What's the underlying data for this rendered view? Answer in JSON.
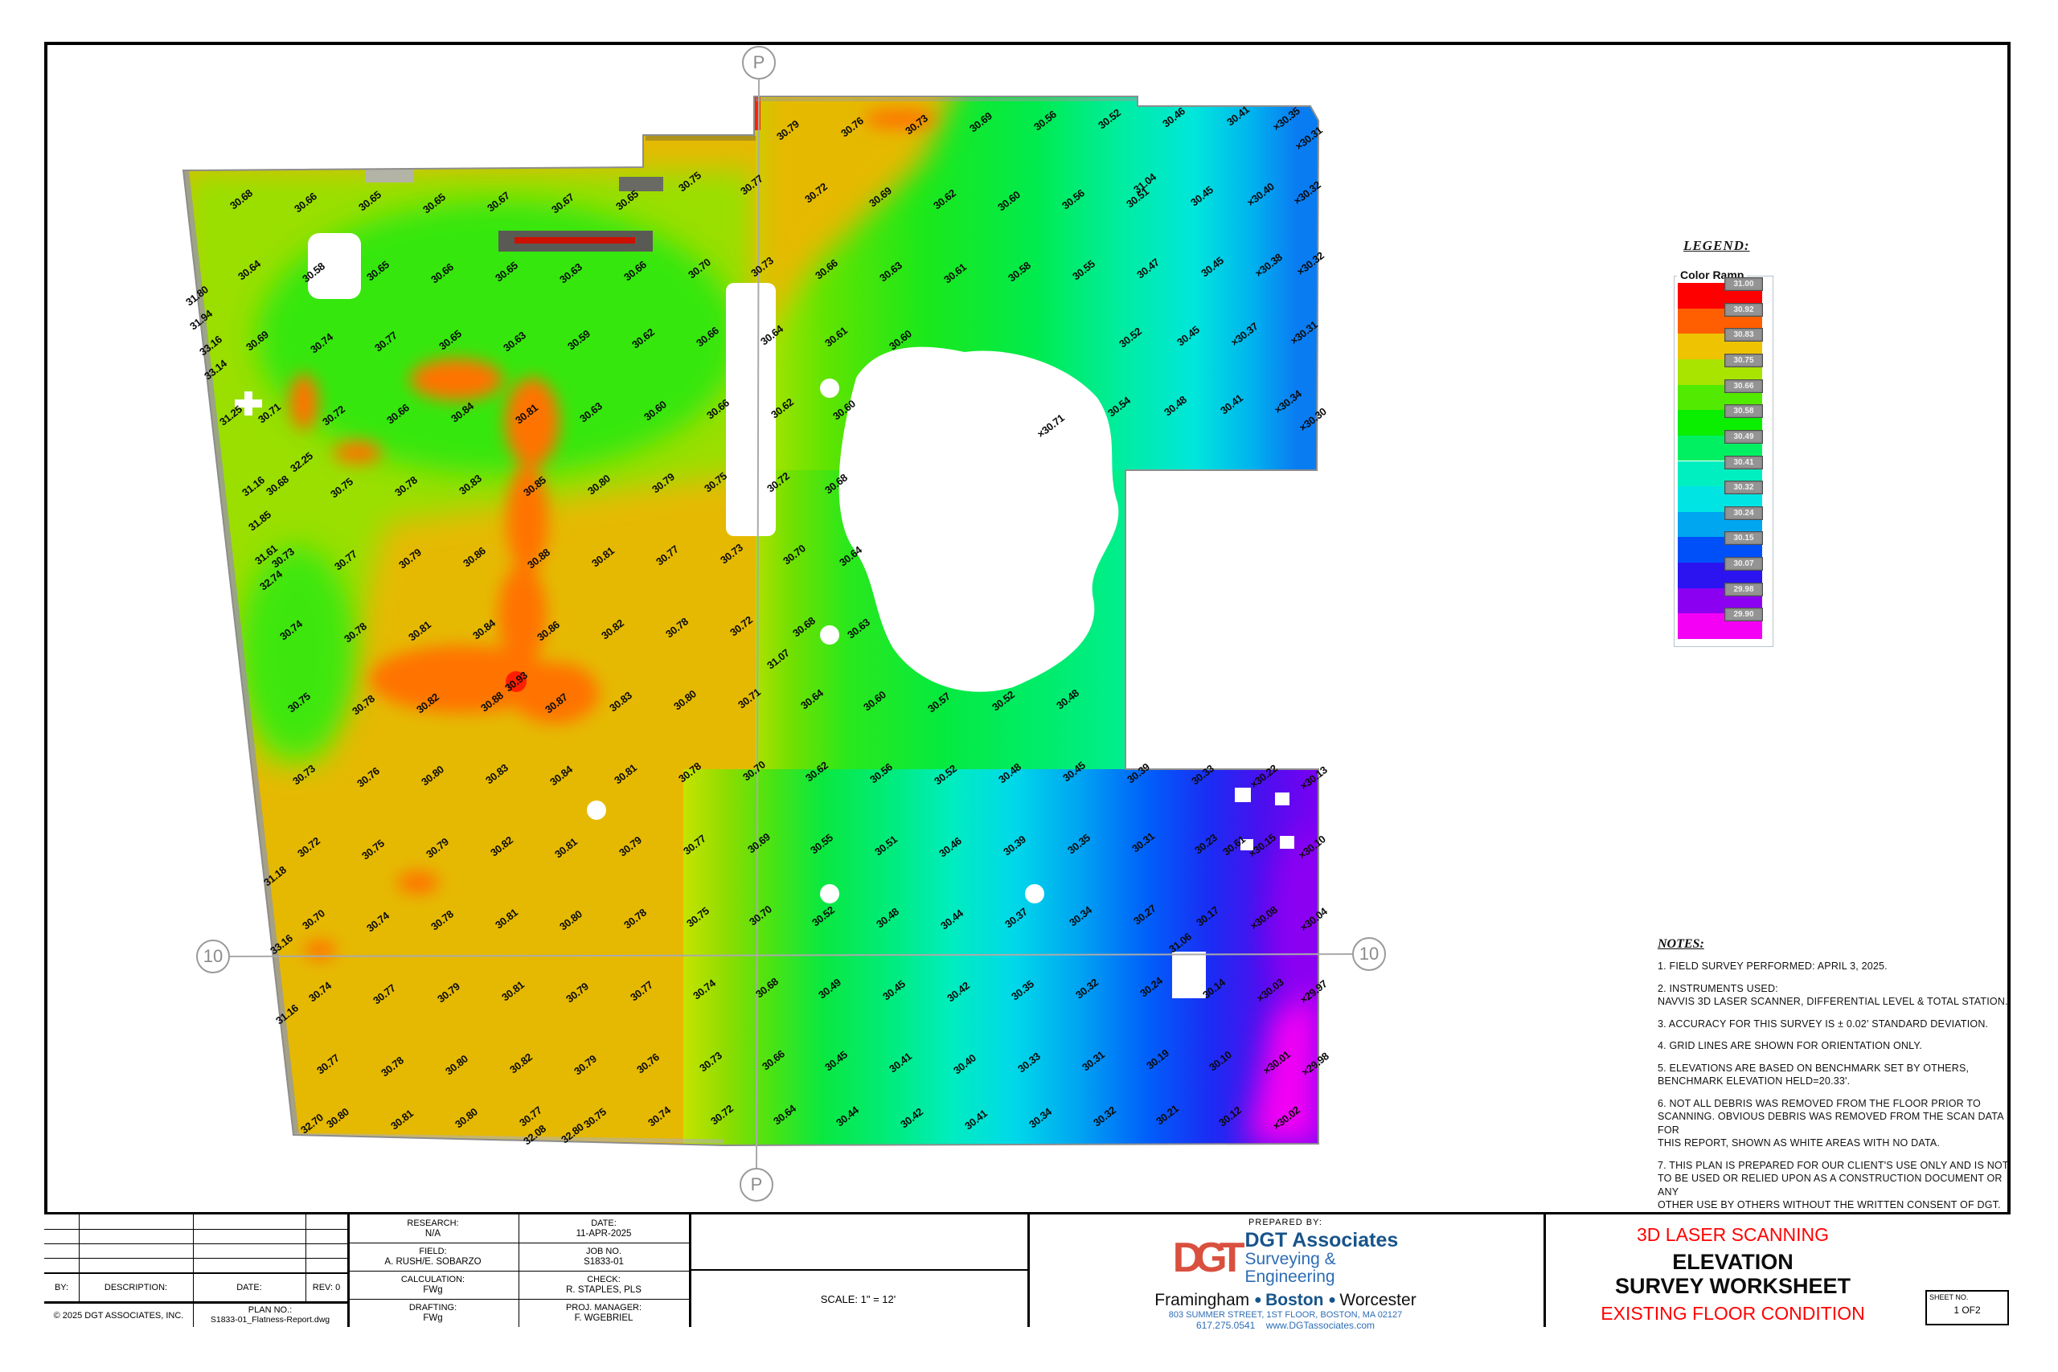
{
  "legend": {
    "title": "LEGEND:",
    "box_title": "Color Ramp",
    "entries": [
      {
        "label": "31.00",
        "color": "#ff0000"
      },
      {
        "label": "30.92",
        "color": "#ff5f00"
      },
      {
        "label": "30.83",
        "color": "#eec301"
      },
      {
        "label": "30.75",
        "color": "#a8e400"
      },
      {
        "label": "30.66",
        "color": "#52ea00"
      },
      {
        "label": "30.58",
        "color": "#0aee00"
      },
      {
        "label": "30.49",
        "color": "#00f062"
      },
      {
        "label": "30.41",
        "color": "#00efc0"
      },
      {
        "label": "30.32",
        "color": "#00e4e4"
      },
      {
        "label": "30.24",
        "color": "#00a6f0"
      },
      {
        "label": "30.15",
        "color": "#0050fa"
      },
      {
        "label": "30.07",
        "color": "#2b14f0"
      },
      {
        "label": "29.98",
        "color": "#8c00f2"
      },
      {
        "label": "29.90",
        "color": "#f400f4"
      }
    ]
  },
  "notes": {
    "title": "NOTES:",
    "items": [
      "1. FIELD SURVEY PERFORMED: APRIL 3, 2025.",
      "2. INSTRUMENTS USED:\nNAVVIS 3D LASER SCANNER, DIFFERENTIAL LEVEL & TOTAL STATION.",
      "3. ACCURACY FOR THIS SURVEY IS ± 0.02' STANDARD DEVIATION.",
      "4. GRID LINES ARE SHOWN FOR ORIENTATION ONLY.",
      "5. ELEVATIONS ARE BASED ON BENCHMARK SET BY OTHERS,\nBENCHMARK ELEVATION HELD=20.33'.",
      "6. NOT ALL DEBRIS WAS REMOVED FROM THE FLOOR PRIOR TO\nSCANNING. OBVIOUS DEBRIS WAS REMOVED FROM THE SCAN DATA FOR\nTHIS REPORT, SHOWN AS WHITE AREAS WITH NO DATA.",
      "7. THIS PLAN IS PREPARED FOR OUR CLIENT'S USE ONLY AND IS NOT\nTO BE USED OR RELIED UPON AS A CONSTRUCTION DOCUMENT OR ANY\nOTHER USE BY OTHERS WITHOUT THE WRITTEN CONSENT OF DGT."
    ]
  },
  "grid_markers": {
    "top": "P",
    "bottom": "P",
    "left": "10",
    "right": "10"
  },
  "title_block": {
    "rev_by": "BY:",
    "rev_description": "DESCRIPTION:",
    "rev_date": "DATE:",
    "rev_rev": "REV: 0",
    "copyright": "© 2025  DGT  ASSOCIATES,  INC.",
    "plan_no_label": "PLAN  NO.:",
    "plan_no": "S1833-01_Flatness-Report.dwg",
    "research_label": "RESEARCH:",
    "research": "N/A",
    "date_label": "DATE:",
    "date": "11-APR-2025",
    "field_label": "FIELD:",
    "field": "A.  RUSH/E.  SOBARZO",
    "job_label": "JOB  NO.",
    "job": "S1833-01",
    "calc_label": "CALCULATION:",
    "calc": "FWg",
    "check_label": "CHECK:",
    "check": "R.  STAPLES,  PLS",
    "drafting_label": "DRAFTING:",
    "drafting": "FWg",
    "pm_label": "PROJ.  MANAGER:",
    "pm": "F.  WGEBRIEL",
    "scale": "SCALE: 1\" = 12'",
    "prepared_by": "PREPARED  BY:",
    "logo_text": "DGT",
    "company": "DGT Associates",
    "tagline1": "Surveying &",
    "tagline2": "Engineering",
    "city1": "Framingham",
    "city2": "Boston",
    "city3": "Worcester",
    "address": "803 SUMMER STREET, 1ST FLOOR, BOSTON, MA 02127",
    "phone": "617.275.0541",
    "website": "www.DGTassociates.com",
    "title_red1": "3D LASER SCANNING",
    "title_main1": "ELEVATION",
    "title_main2": "SURVEY WORKSHEET",
    "title_red2": "EXISTING FLOOR CONDITION",
    "sheet_label": "SHEET  NO.",
    "sheet_no": "1 OF2",
    "brand_red": "#D9503F",
    "brand_navy": "#17548A",
    "brand_blue": "#2D6DB5",
    "title_red": "#FF0000"
  },
  "chart_data": {
    "type": "heatmap",
    "title": "Existing floor condition elevation survey (color ramp of floor elevations)",
    "units": "feet",
    "value_range": [
      29.9,
      31.0
    ],
    "legend_position": "right",
    "ramp_values": [
      31.0,
      30.92,
      30.83,
      30.75,
      30.66,
      30.58,
      30.49,
      30.41,
      30.32,
      30.24,
      30.15,
      30.07,
      29.98,
      29.9
    ],
    "ramp_colors": [
      "#ff0000",
      "#ff5f00",
      "#eec301",
      "#a8e400",
      "#52ea00",
      "#0aee00",
      "#00f062",
      "#00efc0",
      "#00e4e4",
      "#00a6f0",
      "#0050fa",
      "#2b14f0",
      "#8c00f2",
      "#f400f4"
    ],
    "points": [
      [
        980,
        162,
        "30.79"
      ],
      [
        1060,
        158,
        "30.76"
      ],
      [
        1140,
        155,
        "30.73"
      ],
      [
        1220,
        152,
        "30.69"
      ],
      [
        1300,
        150,
        "30.56"
      ],
      [
        1380,
        148,
        "30.52"
      ],
      [
        1460,
        146,
        "30.46"
      ],
      [
        1540,
        144,
        "30.41"
      ],
      [
        1600,
        148,
        "×30.35"
      ],
      [
        1628,
        172,
        "×30.31"
      ],
      [
        300,
        248,
        "30.68"
      ],
      [
        380,
        252,
        "30.66"
      ],
      [
        460,
        250,
        "30.65"
      ],
      [
        540,
        253,
        "30.65"
      ],
      [
        620,
        251,
        "30.67"
      ],
      [
        700,
        253,
        "30.67"
      ],
      [
        780,
        249,
        "30.65"
      ],
      [
        858,
        226,
        "30.75"
      ],
      [
        935,
        230,
        "30.77"
      ],
      [
        1015,
        240,
        "30.72"
      ],
      [
        1095,
        245,
        "30.69"
      ],
      [
        1175,
        248,
        "30.62"
      ],
      [
        1255,
        250,
        "30.60"
      ],
      [
        1335,
        248,
        "30.56"
      ],
      [
        1415,
        246,
        "30.51"
      ],
      [
        1495,
        244,
        "30.45"
      ],
      [
        1568,
        242,
        "×30.40"
      ],
      [
        1626,
        240,
        "×30.32"
      ],
      [
        310,
        336,
        "30.64"
      ],
      [
        390,
        339,
        "30.58"
      ],
      [
        470,
        337,
        "30.65"
      ],
      [
        550,
        340,
        "30.66"
      ],
      [
        630,
        338,
        "30.65"
      ],
      [
        710,
        340,
        "30.63"
      ],
      [
        790,
        337,
        "30.66"
      ],
      [
        870,
        334,
        "30.70"
      ],
      [
        948,
        332,
        "30.73"
      ],
      [
        1028,
        335,
        "30.66"
      ],
      [
        1108,
        338,
        "30.63"
      ],
      [
        1188,
        340,
        "30.61"
      ],
      [
        1268,
        338,
        "30.58"
      ],
      [
        1348,
        336,
        "30.55"
      ],
      [
        1428,
        334,
        "30.47"
      ],
      [
        1508,
        332,
        "30.45"
      ],
      [
        1578,
        330,
        "×30.38"
      ],
      [
        1630,
        328,
        "×30.32"
      ],
      [
        320,
        424,
        "30.69"
      ],
      [
        400,
        427,
        "30.74"
      ],
      [
        480,
        425,
        "30.77"
      ],
      [
        560,
        423,
        "30.65"
      ],
      [
        640,
        425,
        "30.63"
      ],
      [
        720,
        423,
        "30.59"
      ],
      [
        800,
        421,
        "30.62"
      ],
      [
        880,
        419,
        "30.66"
      ],
      [
        960,
        417,
        "30.64"
      ],
      [
        1040,
        419,
        "30.61"
      ],
      [
        1120,
        423,
        "30.60"
      ],
      [
        1406,
        420,
        "30.52"
      ],
      [
        1478,
        418,
        "30.45"
      ],
      [
        1548,
        416,
        "×30.37"
      ],
      [
        1622,
        414,
        "×30.31"
      ],
      [
        335,
        514,
        "30.71"
      ],
      [
        415,
        517,
        "30.72"
      ],
      [
        495,
        515,
        "30.66"
      ],
      [
        575,
        513,
        "30.84"
      ],
      [
        655,
        515,
        "30.81"
      ],
      [
        735,
        513,
        "30.63"
      ],
      [
        815,
        511,
        "30.60"
      ],
      [
        893,
        509,
        "30.66"
      ],
      [
        973,
        508,
        "30.62"
      ],
      [
        1050,
        510,
        "30.60"
      ],
      [
        1392,
        506,
        "30.54"
      ],
      [
        1462,
        505,
        "30.48"
      ],
      [
        1532,
        503,
        "30.41"
      ],
      [
        1602,
        500,
        "×30.34"
      ],
      [
        1633,
        522,
        "×30.30"
      ],
      [
        345,
        604,
        "30.68"
      ],
      [
        425,
        607,
        "30.75"
      ],
      [
        505,
        605,
        "30.78"
      ],
      [
        585,
        603,
        "30.83"
      ],
      [
        665,
        605,
        "30.85"
      ],
      [
        745,
        603,
        "30.80"
      ],
      [
        825,
        601,
        "30.79"
      ],
      [
        890,
        600,
        "30.75"
      ],
      [
        968,
        600,
        "30.72"
      ],
      [
        1040,
        602,
        "30.68"
      ],
      [
        352,
        694,
        "30.73"
      ],
      [
        430,
        697,
        "30.77"
      ],
      [
        510,
        695,
        "30.79"
      ],
      [
        590,
        693,
        "30.86"
      ],
      [
        670,
        695,
        "30.88"
      ],
      [
        750,
        693,
        "30.81"
      ],
      [
        830,
        691,
        "30.77"
      ],
      [
        910,
        689,
        "30.73"
      ],
      [
        988,
        690,
        "30.70"
      ],
      [
        1058,
        692,
        "30.64"
      ],
      [
        362,
        784,
        "30.74"
      ],
      [
        442,
        787,
        "30.78"
      ],
      [
        522,
        785,
        "30.81"
      ],
      [
        602,
        783,
        "30.84"
      ],
      [
        682,
        785,
        "30.86"
      ],
      [
        762,
        783,
        "30.82"
      ],
      [
        842,
        781,
        "30.78"
      ],
      [
        922,
        779,
        "30.72"
      ],
      [
        1000,
        780,
        "30.68"
      ],
      [
        1068,
        782,
        "30.63"
      ],
      [
        372,
        874,
        "30.75"
      ],
      [
        452,
        877,
        "30.78"
      ],
      [
        532,
        875,
        "30.82"
      ],
      [
        612,
        873,
        "30.88"
      ],
      [
        692,
        875,
        "30.87"
      ],
      [
        772,
        873,
        "30.83"
      ],
      [
        852,
        871,
        "30.80"
      ],
      [
        932,
        869,
        "30.71"
      ],
      [
        1010,
        870,
        "30.64"
      ],
      [
        1088,
        872,
        "30.60"
      ],
      [
        1168,
        874,
        "30.57"
      ],
      [
        1248,
        872,
        "30.52"
      ],
      [
        1328,
        870,
        "30.48"
      ],
      [
        378,
        964,
        "30.73"
      ],
      [
        458,
        967,
        "30.76"
      ],
      [
        538,
        965,
        "30.80"
      ],
      [
        618,
        963,
        "30.83"
      ],
      [
        698,
        965,
        "30.84"
      ],
      [
        778,
        963,
        "30.81"
      ],
      [
        858,
        961,
        "30.78"
      ],
      [
        938,
        959,
        "30.70"
      ],
      [
        1016,
        960,
        "30.62"
      ],
      [
        1096,
        962,
        "30.56"
      ],
      [
        1176,
        964,
        "30.52"
      ],
      [
        1256,
        962,
        "30.48"
      ],
      [
        1336,
        960,
        "30.45"
      ],
      [
        1416,
        962,
        "30.39"
      ],
      [
        1496,
        964,
        "30.33"
      ],
      [
        1572,
        966,
        "×30.22"
      ],
      [
        1634,
        968,
        "×30.13"
      ],
      [
        384,
        1054,
        "30.72"
      ],
      [
        464,
        1057,
        "30.75"
      ],
      [
        544,
        1055,
        "30.79"
      ],
      [
        624,
        1053,
        "30.82"
      ],
      [
        704,
        1055,
        "30.81"
      ],
      [
        784,
        1053,
        "30.79"
      ],
      [
        864,
        1051,
        "30.77"
      ],
      [
        944,
        1049,
        "30.69"
      ],
      [
        1022,
        1050,
        "30.55"
      ],
      [
        1102,
        1052,
        "30.51"
      ],
      [
        1182,
        1054,
        "30.46"
      ],
      [
        1262,
        1052,
        "30.39"
      ],
      [
        1342,
        1050,
        "30.35"
      ],
      [
        1422,
        1048,
        "30.31"
      ],
      [
        1500,
        1050,
        "30.23"
      ],
      [
        1570,
        1052,
        "×30.15"
      ],
      [
        1632,
        1054,
        "×30.10"
      ],
      [
        390,
        1144,
        "30.70"
      ],
      [
        470,
        1147,
        "30.74"
      ],
      [
        550,
        1145,
        "30.78"
      ],
      [
        630,
        1143,
        "30.81"
      ],
      [
        710,
        1145,
        "30.80"
      ],
      [
        790,
        1143,
        "30.78"
      ],
      [
        868,
        1141,
        "30.75"
      ],
      [
        946,
        1139,
        "30.70"
      ],
      [
        1024,
        1140,
        "30.52"
      ],
      [
        1104,
        1142,
        "30.48"
      ],
      [
        1184,
        1144,
        "30.44"
      ],
      [
        1264,
        1142,
        "30.37"
      ],
      [
        1344,
        1140,
        "30.34"
      ],
      [
        1424,
        1138,
        "30.27"
      ],
      [
        1502,
        1140,
        "30.17"
      ],
      [
        1572,
        1142,
        "×30.08"
      ],
      [
        1634,
        1144,
        "×30.04"
      ],
      [
        398,
        1234,
        "30.74"
      ],
      [
        478,
        1237,
        "30.77"
      ],
      [
        558,
        1235,
        "30.79"
      ],
      [
        638,
        1233,
        "30.81"
      ],
      [
        718,
        1235,
        "30.79"
      ],
      [
        798,
        1233,
        "30.77"
      ],
      [
        876,
        1231,
        "30.74"
      ],
      [
        954,
        1229,
        "30.68"
      ],
      [
        1032,
        1230,
        "30.49"
      ],
      [
        1112,
        1232,
        "30.45"
      ],
      [
        1192,
        1234,
        "30.42"
      ],
      [
        1272,
        1232,
        "30.35"
      ],
      [
        1352,
        1230,
        "30.32"
      ],
      [
        1432,
        1228,
        "30.24"
      ],
      [
        1510,
        1230,
        "30.14"
      ],
      [
        1580,
        1232,
        "×30.03"
      ],
      [
        1634,
        1234,
        "×29.97"
      ],
      [
        408,
        1324,
        "30.77"
      ],
      [
        488,
        1327,
        "30.78"
      ],
      [
        568,
        1325,
        "30.80"
      ],
      [
        648,
        1323,
        "30.82"
      ],
      [
        728,
        1325,
        "30.79"
      ],
      [
        806,
        1323,
        "30.76"
      ],
      [
        884,
        1321,
        "30.73"
      ],
      [
        962,
        1319,
        "30.66"
      ],
      [
        1040,
        1320,
        "30.45"
      ],
      [
        1120,
        1322,
        "30.41"
      ],
      [
        1200,
        1324,
        "30.40"
      ],
      [
        1280,
        1322,
        "30.33"
      ],
      [
        1360,
        1320,
        "30.31"
      ],
      [
        1440,
        1318,
        "30.19"
      ],
      [
        1518,
        1320,
        "30.10"
      ],
      [
        1588,
        1322,
        "×30.01"
      ],
      [
        1636,
        1324,
        "×29.98"
      ],
      [
        420,
        1391,
        "30.80"
      ],
      [
        500,
        1393,
        "30.81"
      ],
      [
        580,
        1391,
        "30.80"
      ],
      [
        660,
        1389,
        "30.77"
      ],
      [
        740,
        1391,
        "30.75"
      ],
      [
        820,
        1389,
        "30.74"
      ],
      [
        898,
        1387,
        "30.72"
      ],
      [
        976,
        1387,
        "30.64"
      ],
      [
        1054,
        1389,
        "30.44"
      ],
      [
        1134,
        1391,
        "30.42"
      ],
      [
        1214,
        1393,
        "30.41"
      ],
      [
        1294,
        1391,
        "30.34"
      ],
      [
        1374,
        1389,
        "30.32"
      ],
      [
        1452,
        1387,
        "30.21"
      ],
      [
        1530,
        1389,
        "30.12"
      ],
      [
        1600,
        1391,
        "×30.02"
      ],
      [
        245,
        368,
        "31.80"
      ],
      [
        250,
        398,
        "31.94"
      ],
      [
        262,
        430,
        "33.16"
      ],
      [
        268,
        460,
        "33.14"
      ],
      [
        287,
        517,
        "31.25"
      ],
      [
        315,
        605,
        "31.16"
      ],
      [
        323,
        648,
        "31.85"
      ],
      [
        331,
        690,
        "31.61"
      ],
      [
        337,
        722,
        "32.74"
      ],
      [
        375,
        575,
        "32.25"
      ],
      [
        342,
        1090,
        "31.18"
      ],
      [
        350,
        1175,
        "33.16"
      ],
      [
        357,
        1262,
        "31.16"
      ],
      [
        388,
        1398,
        "32.70"
      ],
      [
        665,
        1412,
        "32.08"
      ],
      [
        712,
        1410,
        "32.80"
      ],
      [
        1424,
        228,
        "31.04"
      ],
      [
        968,
        820,
        "31.07"
      ],
      [
        1468,
        1173,
        "31.06"
      ],
      [
        1535,
        1052,
        "30.61"
      ],
      [
        1307,
        530,
        "×30.71"
      ],
      [
        642,
        848,
        "30.93"
      ]
    ]
  }
}
